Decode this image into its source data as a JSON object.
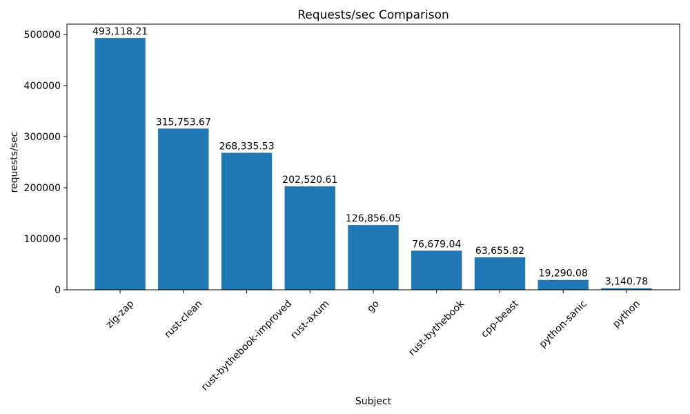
{
  "chart_data": {
    "type": "bar",
    "title": "Requests/sec Comparison",
    "xlabel": "Subject",
    "ylabel": "requests/sec",
    "categories": [
      "zig-zap",
      "rust-clean",
      "rust-bythebook-improved",
      "rust-axum",
      "go",
      "rust-bythebook",
      "cpp-beast",
      "python-sanic",
      "python"
    ],
    "values": [
      493118.21,
      315753.67,
      268335.53,
      202520.61,
      126856.05,
      76679.04,
      63655.82,
      19290.08,
      3140.78
    ],
    "value_labels": [
      "493,118.21",
      "315,753.67",
      "268,335.53",
      "202,520.61",
      "126,856.05",
      "76,679.04",
      "63,655.82",
      "19,290.08",
      "3,140.78"
    ],
    "ylim": [
      0,
      500000
    ],
    "yticks": [
      0,
      100000,
      200000,
      300000,
      400000,
      500000
    ],
    "ytick_labels": [
      "0",
      "100000",
      "200000",
      "300000",
      "400000",
      "500000"
    ],
    "bar_color": "#1f77b4",
    "axis_color": "#000000",
    "text_color": "#000000",
    "background_color": "#ffffff",
    "grid": false,
    "legend": null,
    "x_tick_rotation_deg": 45
  }
}
